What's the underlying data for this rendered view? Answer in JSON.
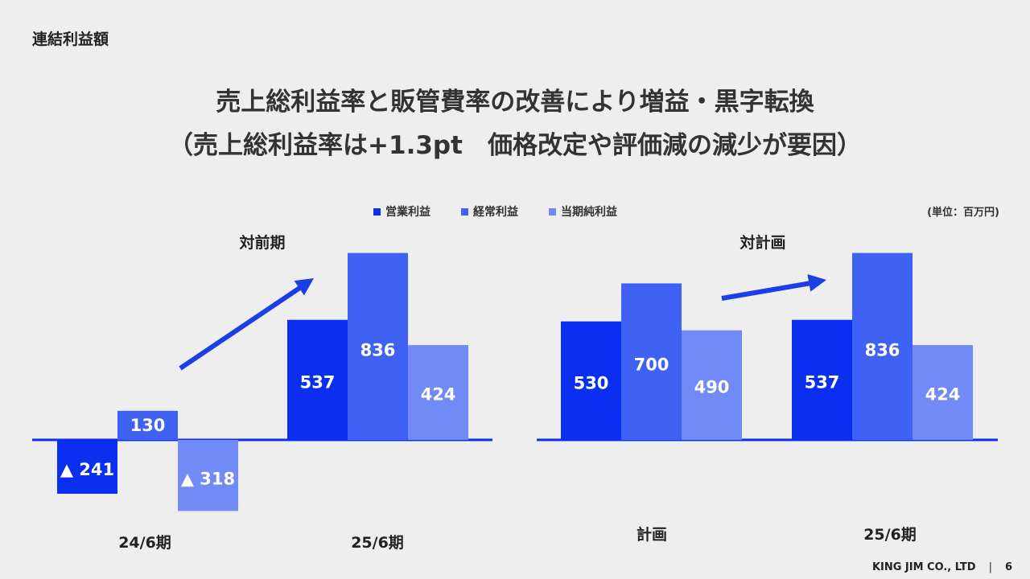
{
  "section_title": "連結利益額",
  "headline": {
    "line1": "売上総利益率と販管費率の改善により増益・黒字転換",
    "line2": "（売上総利益率は+1.3pt　価格改定や評価減の減少が要因）"
  },
  "unit_label": "(単位：百万円)",
  "colors": {
    "operating_profit": "#0a2ff0",
    "ordinary_profit": "#3f62f5",
    "net_profit": "#7289f8",
    "axis": "#0a2ff0",
    "arrow": "#1a3fe6"
  },
  "legend": [
    {
      "label": "営業利益",
      "color": "#0a2ff0"
    },
    {
      "label": "経常利益",
      "color": "#3f62f5"
    },
    {
      "label": "当期純利益",
      "color": "#7289f8"
    }
  ],
  "chart_data": [
    {
      "type": "bar",
      "title": "対前期",
      "categories": [
        "24/6期",
        "25/6期"
      ],
      "series": [
        {
          "name": "営業利益",
          "values": [
            -241,
            537
          ],
          "labels": [
            "▲ 241",
            "537"
          ]
        },
        {
          "name": "経常利益",
          "values": [
            130,
            836
          ],
          "labels": [
            "130",
            "836"
          ]
        },
        {
          "name": "当期純利益",
          "values": [
            -318,
            424
          ],
          "labels": [
            "▲ 318",
            "424"
          ]
        }
      ]
    },
    {
      "type": "bar",
      "title": "対計画",
      "categories": [
        "計画",
        "25/6期"
      ],
      "series": [
        {
          "name": "営業利益",
          "values": [
            530,
            537
          ],
          "labels": [
            "530",
            "537"
          ]
        },
        {
          "name": "経常利益",
          "values": [
            700,
            836
          ],
          "labels": [
            "700",
            "836"
          ]
        },
        {
          "name": "当期純利益",
          "values": [
            490,
            424
          ],
          "labels": [
            "490",
            "424"
          ]
        }
      ]
    }
  ],
  "footer": {
    "company": "KING JIM CO., LTD",
    "separator": "|",
    "page_number": "6"
  }
}
